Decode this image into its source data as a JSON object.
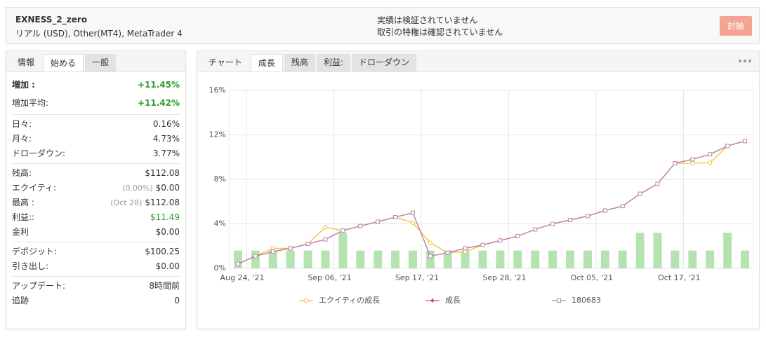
{
  "header": {
    "title": "EXNESS_2_zero",
    "subtitle": "リアル (USD), Other(MT4), MetaTrader 4",
    "warnings": [
      "実績は検証されていません",
      "取引の特権は確認されていません"
    ],
    "button": "討論"
  },
  "left_tabs": [
    "情報",
    "始める",
    "一般"
  ],
  "left_active": 1,
  "stats": [
    [
      {
        "label": "増加 :",
        "value": "+11.45%",
        "color": "#2e9e2e",
        "bold": true
      },
      {
        "label": "増加平均:",
        "value": "+11.42%",
        "color": "#2e9e2e"
      }
    ],
    [
      {
        "label": "日々:",
        "value": "0.16%"
      },
      {
        "label": "月々:",
        "value": "4.73%"
      },
      {
        "label": "ドローダウン:",
        "value": "3.77%"
      }
    ],
    [
      {
        "label": "残高:",
        "value": "$112.08"
      },
      {
        "label": "エクイティ:",
        "note": "(0.00%)",
        "value": "$0.00"
      },
      {
        "label": "最高 :",
        "note": "(Oct 28)",
        "value": "$112.08"
      },
      {
        "label": "利益::",
        "value": "$11.49",
        "color": "#2e9e2e"
      },
      {
        "label": "金利",
        "value": "$0.00"
      }
    ],
    [
      {
        "label": "デポジット:",
        "value": "$100.25"
      },
      {
        "label": "引き出し:",
        "value": "$0.00"
      }
    ],
    [
      {
        "label": "アップデート:",
        "value": "8時間前"
      },
      {
        "label": "追跡",
        "value": "0"
      }
    ]
  ],
  "right_tabs": [
    "チャート",
    "成長",
    "残高",
    "利益:",
    "ドローダウン"
  ],
  "right_active": 1,
  "chart_data": {
    "type": "line",
    "categories": [
      "Aug 24, '21",
      null,
      null,
      null,
      null,
      "Sep 06, '21",
      null,
      null,
      null,
      null,
      "Sep 17, '21",
      null,
      null,
      null,
      null,
      "Sep 28, '21",
      null,
      null,
      null,
      null,
      "Oct 05, '21",
      null,
      null,
      null,
      null,
      "Oct 17, '21",
      null,
      null,
      null,
      null
    ],
    "ylim": [
      0,
      16
    ],
    "yticks": [
      {
        "value": 0,
        "label": "0%"
      },
      {
        "value": 4,
        "label": "4%"
      },
      {
        "value": 8,
        "label": "8%"
      },
      {
        "value": 12,
        "label": "12%"
      },
      {
        "value": 16,
        "label": "16%"
      }
    ],
    "grid": true,
    "bars": {
      "color": "#b5e3b0",
      "values": [
        1.6,
        1.6,
        1.6,
        1.6,
        1.6,
        1.6,
        3.2,
        1.6,
        1.6,
        1.6,
        1.6,
        1.6,
        1.6,
        1.6,
        1.6,
        1.6,
        1.6,
        1.6,
        1.6,
        1.6,
        1.6,
        1.6,
        1.6,
        3.2,
        3.2,
        1.6,
        1.6,
        1.6,
        3.2,
        1.6
      ]
    },
    "series": [
      {
        "name": "エクイティの成長",
        "color": "#f2c12e",
        "marker": "circle",
        "values": [
          0.4,
          1.1,
          1.8,
          1.8,
          2.2,
          3.7,
          3.4,
          3.8,
          4.2,
          4.6,
          4.1,
          2.3,
          1.4,
          1.5,
          2.1,
          2.5,
          2.9,
          3.5,
          4.0,
          4.35,
          4.7,
          5.2,
          5.6,
          6.7,
          7.6,
          9.45,
          9.45,
          9.5,
          11.0,
          11.45
        ]
      },
      {
        "name": "成長",
        "color": "#d9534f",
        "marker": "diamond",
        "values": [
          0.4,
          1.1,
          1.5,
          1.8,
          2.2,
          2.6,
          3.4,
          3.8,
          4.2,
          4.6,
          5.0,
          1.1,
          1.4,
          1.8,
          2.1,
          2.5,
          2.9,
          3.5,
          4.0,
          4.35,
          4.7,
          5.2,
          5.6,
          6.7,
          7.6,
          9.45,
          9.8,
          10.25,
          11.0,
          11.45
        ]
      },
      {
        "name": "180683",
        "color": "#b988b0",
        "marker": "square",
        "values": [
          0.4,
          1.1,
          1.5,
          1.8,
          2.2,
          2.6,
          3.4,
          3.8,
          4.2,
          4.6,
          5.0,
          1.1,
          1.4,
          1.8,
          2.1,
          2.5,
          2.9,
          3.5,
          4.0,
          4.35,
          4.7,
          5.2,
          5.6,
          6.7,
          7.6,
          9.45,
          9.8,
          10.25,
          11.0,
          11.45
        ]
      }
    ]
  }
}
